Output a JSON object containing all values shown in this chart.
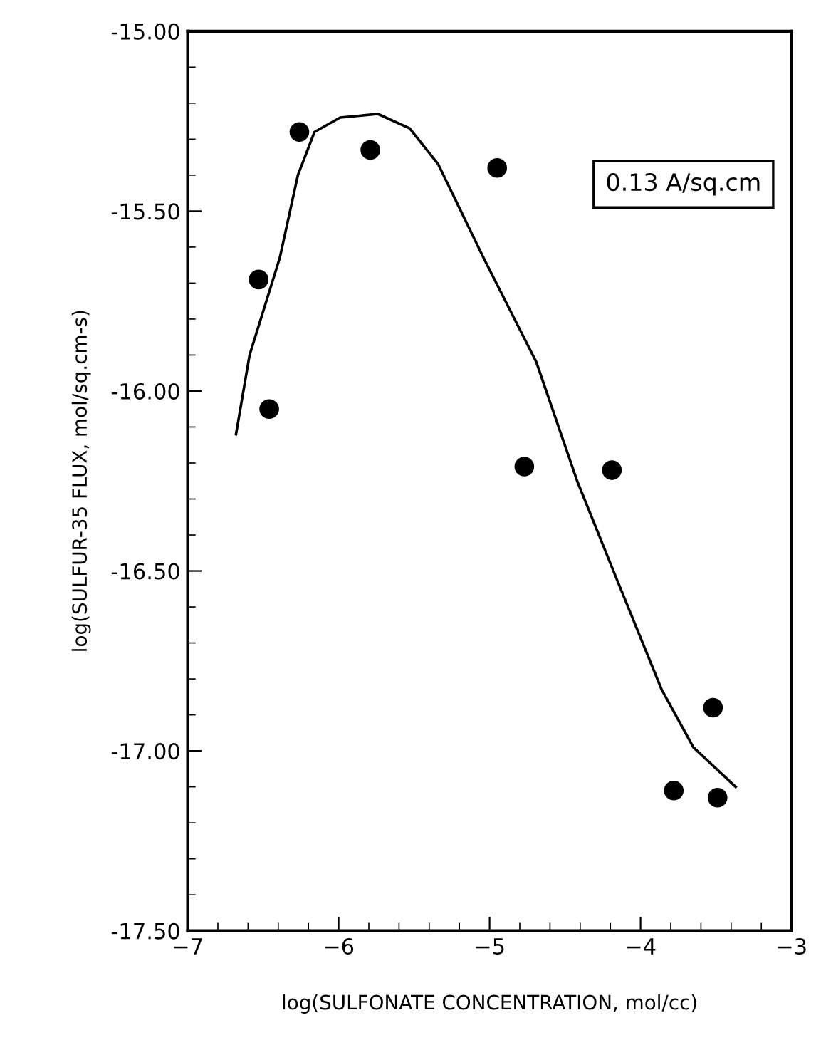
{
  "chart_data": {
    "type": "scatter",
    "xlabel": "log(SULFONATE CONCENTRATION, mol/cc)",
    "ylabel": "log(SULFUR-35 FLUX, mol/sq.cm-s)",
    "annotations": [
      "0.13 A/sq.cm"
    ],
    "series": [
      {
        "color": "#000000",
        "marker": "circle",
        "x": [
          -6.53,
          -6.46,
          -6.26,
          -5.79,
          -4.95,
          -4.77,
          -4.19,
          -3.78,
          -3.52,
          -3.49
        ],
        "values": [
          -15.69,
          -16.05,
          -15.28,
          -15.33,
          -15.38,
          -16.21,
          -16.22,
          -17.11,
          -16.88,
          -17.13
        ]
      },
      {
        "type": "line",
        "color": "#000000",
        "line_style": "solid",
        "x": [
          -6.68,
          -6.59,
          -6.39,
          -6.27,
          -6.16,
          -5.99,
          -5.74,
          -5.53,
          -5.34,
          -5.04,
          -4.69,
          -4.42,
          -4.17,
          -3.86,
          -3.65,
          -3.37
        ],
        "values": [
          -16.12,
          -15.9,
          -15.63,
          -15.4,
          -15.28,
          -15.24,
          -15.23,
          -15.27,
          -15.37,
          -15.63,
          -15.92,
          -16.25,
          -16.51,
          -16.83,
          -16.99,
          -17.1
        ]
      }
    ],
    "xlim": [
      -7,
      -3
    ],
    "xticks": [
      {
        "value": -7,
        "label": "−7"
      },
      {
        "value": -6,
        "label": "−6"
      },
      {
        "value": -5,
        "label": "−5"
      },
      {
        "value": -4,
        "label": "−4"
      },
      {
        "value": -3,
        "label": "−3"
      }
    ],
    "ylim": [
      -17.5,
      -15
    ],
    "yticks": [
      {
        "value": -17.5,
        "label": "-17.50"
      },
      {
        "value": -17,
        "label": "-17.00"
      },
      {
        "value": -16.5,
        "label": "-16.50"
      },
      {
        "value": -16,
        "label": "-16.00"
      },
      {
        "value": -15.5,
        "label": "-15.50"
      },
      {
        "value": -15,
        "label": "-15.00"
      }
    ],
    "grid": false,
    "legend": false
  }
}
